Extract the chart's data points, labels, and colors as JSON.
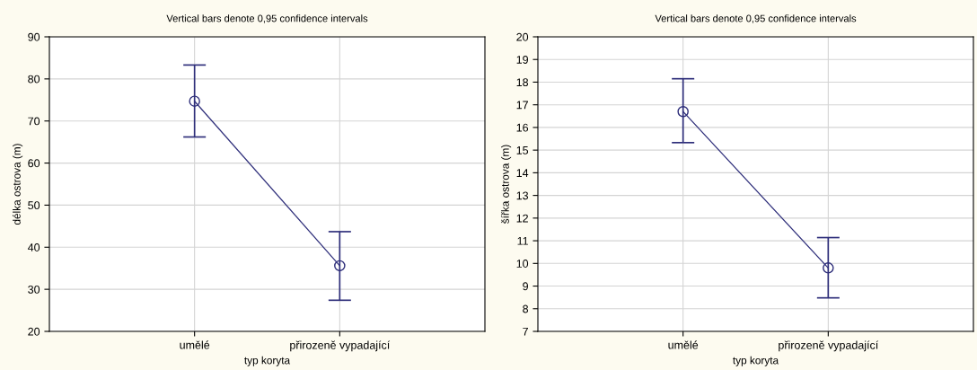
{
  "chart_data": [
    {
      "type": "line",
      "title": "Vertical bars denote 0,95 confidence intervals",
      "xlabel": "typ koryta",
      "ylabel": "délka ostrova (m)",
      "categories": [
        "umělé",
        "přirozeně vypadající"
      ],
      "values": [
        74.7,
        35.6
      ],
      "errors": [
        [
          66.2,
          83.3
        ],
        [
          27.4,
          43.7
        ]
      ],
      "color": "#2e2e7a",
      "marker": "circle",
      "grid": true,
      "ylim": [
        20,
        90
      ],
      "yticks": [
        20,
        30,
        40,
        50,
        60,
        70,
        80,
        90
      ]
    },
    {
      "type": "line",
      "title": "Vertical bars denote 0,95 confidence intervals",
      "xlabel": "typ koryta",
      "ylabel": "šířka ostrova (m)",
      "categories": [
        "umělé",
        "přirozeně vypadající"
      ],
      "values": [
        16.7,
        9.8
      ],
      "errors": [
        [
          15.33,
          18.15
        ],
        [
          8.48,
          11.14
        ]
      ],
      "color": "#2e2e7a",
      "marker": "circle",
      "grid": true,
      "ylim": [
        7,
        20
      ],
      "yticks": [
        7,
        8,
        9,
        10,
        11,
        12,
        13,
        14,
        15,
        16,
        17,
        18,
        19,
        20
      ]
    }
  ]
}
